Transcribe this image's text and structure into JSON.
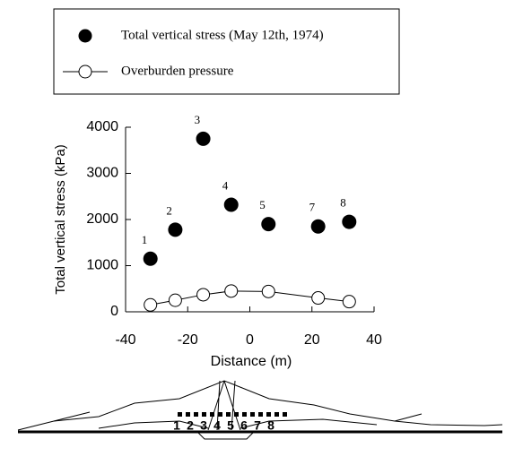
{
  "chart_data": {
    "type": "scatter",
    "ylabel": "Total vertical stress (kPa)",
    "xlabel": "Distance (m)",
    "xlim": [
      -40,
      40
    ],
    "xticks": [
      -40,
      -20,
      0,
      20,
      40
    ],
    "ylim": [
      0,
      4000
    ],
    "yticks": [
      0,
      1000,
      2000,
      3000,
      4000
    ],
    "series": [
      {
        "name": "Total vertical stress (May 12th, 1974)",
        "color": "#000000",
        "marker": "filled",
        "x": [
          -32,
          -24,
          -15,
          -6,
          6,
          22,
          32
        ],
        "values": [
          1150,
          1780,
          3750,
          2320,
          1900,
          1850,
          1950
        ],
        "point_labels": [
          "1",
          "2",
          "3",
          "4",
          "5",
          "7",
          "8"
        ]
      },
      {
        "name": "Overburden pressure",
        "color": "#000000",
        "marker": "open",
        "line": true,
        "x": [
          -32,
          -24,
          -15,
          -6,
          6,
          22,
          32
        ],
        "values": [
          150,
          250,
          370,
          450,
          440,
          300,
          220
        ]
      }
    ]
  },
  "diagram": {
    "labels": [
      "1",
      "2",
      "3",
      "4",
      "5",
      "6",
      "7",
      "8"
    ]
  }
}
